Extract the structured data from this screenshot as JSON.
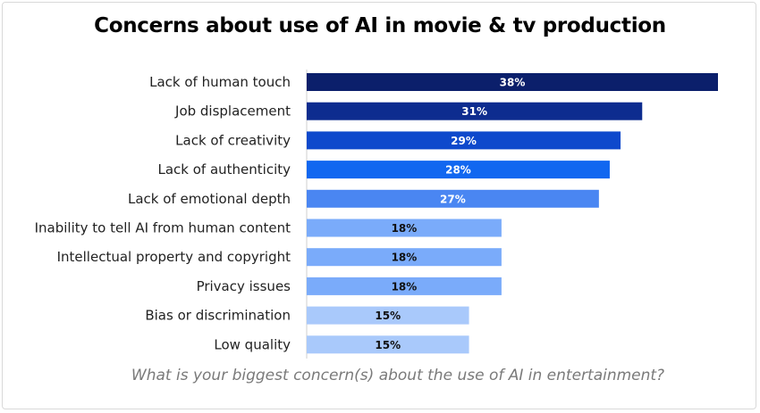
{
  "chart_data": {
    "type": "bar",
    "orientation": "horizontal",
    "title": "Concerns about use of AI in movie & tv production",
    "caption": "What is your biggest concern(s) about the use of AI in entertainment?",
    "categories": [
      "Lack of human touch",
      "Job displacement",
      "Lack of creativity",
      "Lack of authenticity",
      "Lack of emotional depth",
      "Inability to tell AI from human content",
      "Intellectual property and copyright",
      "Privacy issues",
      "Bias or discrimination",
      "Low quality"
    ],
    "values": [
      38,
      31,
      29,
      28,
      27,
      18,
      18,
      18,
      15,
      15
    ],
    "value_labels": [
      "38%",
      "31%",
      "29%",
      "28%",
      "27%",
      "18%",
      "18%",
      "18%",
      "15%",
      "15%"
    ],
    "bar_colors": [
      "#0b1f6b",
      "#0d2c8f",
      "#0e49cc",
      "#1167f0",
      "#4a86f2",
      "#7aabfa",
      "#7aabfa",
      "#7aabfa",
      "#a9c9fb",
      "#a9c9fb"
    ],
    "value_label_colors": [
      "#ffffff",
      "#ffffff",
      "#ffffff",
      "#ffffff",
      "#ffffff",
      "#111111",
      "#111111",
      "#111111",
      "#111111",
      "#111111"
    ],
    "xlim": [
      0,
      38
    ],
    "grid": false,
    "legend": "none"
  }
}
